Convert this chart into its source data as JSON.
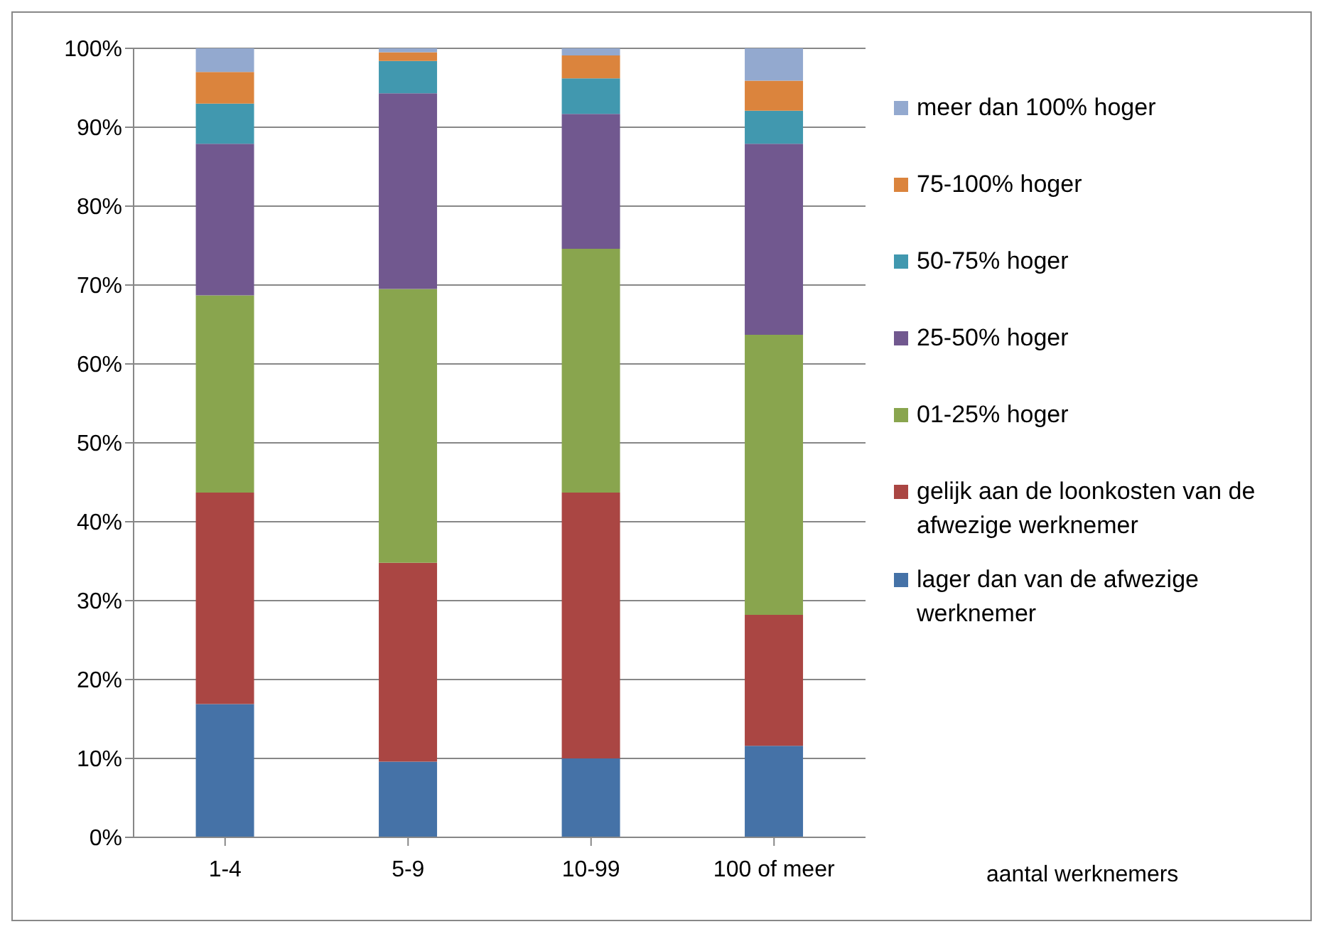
{
  "chart_data": {
    "type": "bar",
    "stacked": true,
    "annotations": [
      "aantal werknemers"
    ],
    "categories": [
      "1-4",
      "5-9",
      "10-99",
      "100 of meer"
    ],
    "series": [
      {
        "name": "lager dan van de afwezige werknemer",
        "color": "#4572a7",
        "values": [
          16.9,
          9.6,
          10.0,
          11.6
        ]
      },
      {
        "name": "gelijk aan de loonkosten van de afwezige werknemer",
        "color": "#aa4643",
        "values": [
          26.8,
          25.2,
          33.7,
          16.6
        ]
      },
      {
        "name": "01-25% hoger",
        "color": "#89a54e",
        "values": [
          25.0,
          34.7,
          30.9,
          35.5
        ]
      },
      {
        "name": "25-50% hoger",
        "color": "#71588f",
        "values": [
          19.2,
          24.8,
          17.1,
          24.2
        ]
      },
      {
        "name": "50-75% hoger",
        "color": "#4198af",
        "values": [
          5.1,
          4.1,
          4.5,
          4.2
        ]
      },
      {
        "name": "75-100% hoger",
        "color": "#db843d",
        "values": [
          4.0,
          1.1,
          2.9,
          3.8
        ]
      },
      {
        "name": "meer dan 100% hoger",
        "color": "#93a9cf",
        "values": [
          3.0,
          0.5,
          0.9,
          4.1
        ]
      }
    ],
    "ylim": [
      0,
      100
    ],
    "yticks": [
      {
        "value": 0,
        "label": "0%"
      },
      {
        "value": 10,
        "label": "10%"
      },
      {
        "value": 20,
        "label": "20%"
      },
      {
        "value": 30,
        "label": "30%"
      },
      {
        "value": 40,
        "label": "40%"
      },
      {
        "value": 50,
        "label": "50%"
      },
      {
        "value": 60,
        "label": "60%"
      },
      {
        "value": 70,
        "label": "70%"
      },
      {
        "value": 80,
        "label": "80%"
      },
      {
        "value": 90,
        "label": "90%"
      },
      {
        "value": 100,
        "label": "100%"
      }
    ],
    "grid": "y",
    "legend": "right"
  }
}
